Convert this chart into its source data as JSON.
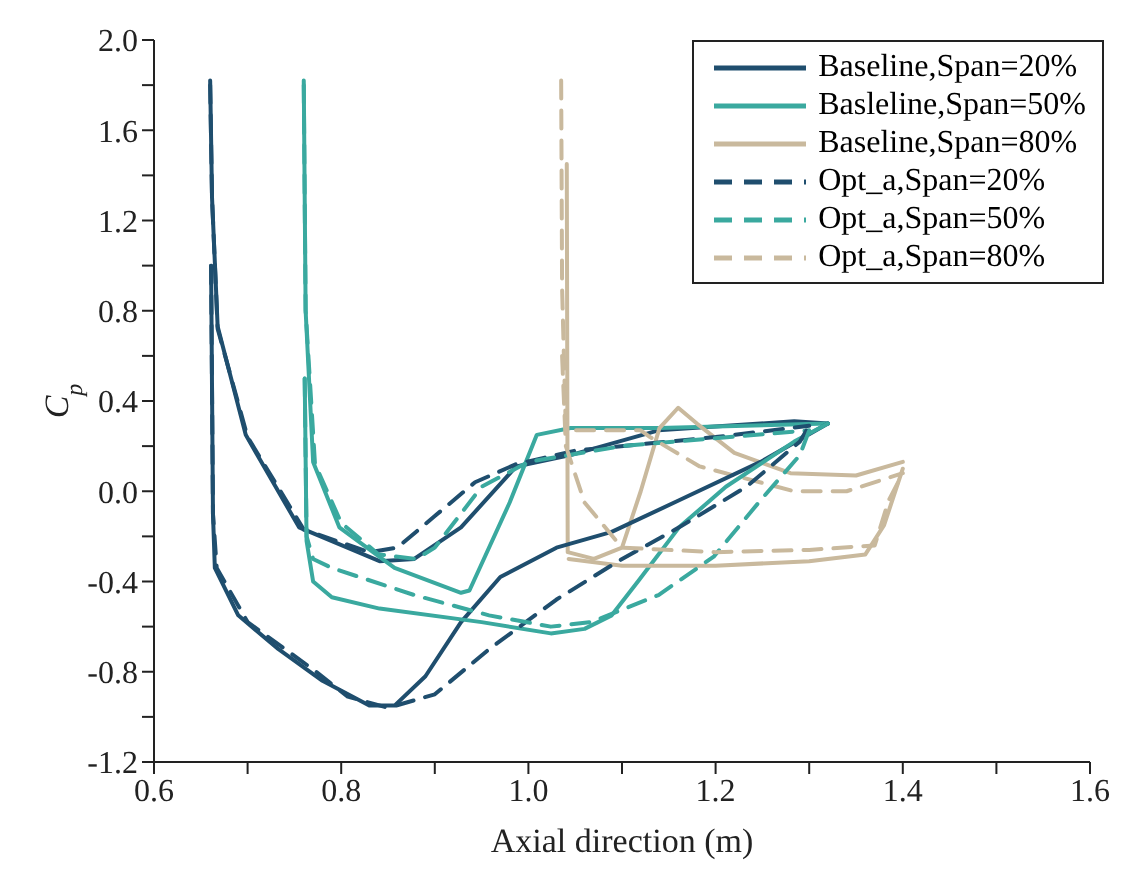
{
  "chart_data": {
    "type": "line",
    "xlabel": "Axial direction (m)",
    "ylabel": "C$_{p}$",
    "legend": "top right",
    "xlim": [
      0.6,
      1.6
    ],
    "ylim": [
      -1.2,
      2.0
    ],
    "xticks": [
      {
        "value": 0.6,
        "label": "0.6"
      },
      {
        "value": 0.7,
        "label": null
      },
      {
        "value": 0.8,
        "label": "0.8"
      },
      {
        "value": 0.9,
        "label": null
      },
      {
        "value": 1.0,
        "label": "1.0"
      },
      {
        "value": 1.1,
        "label": null
      },
      {
        "value": 1.2,
        "label": "1.2"
      },
      {
        "value": 1.3,
        "label": null
      },
      {
        "value": 1.4,
        "label": "1.4"
      },
      {
        "value": 1.5,
        "label": null
      },
      {
        "value": 1.6,
        "label": "1.6"
      }
    ],
    "yticks": [
      {
        "value": -1.2,
        "label": "-1.2"
      },
      {
        "value": -1.0,
        "label": null
      },
      {
        "value": -0.8,
        "label": "-0.8"
      },
      {
        "value": -0.6,
        "label": null
      },
      {
        "value": -0.4,
        "label": "-0.4"
      },
      {
        "value": -0.2,
        "label": null
      },
      {
        "value": 0.0,
        "label": "0.0"
      },
      {
        "value": 0.2,
        "label": null
      },
      {
        "value": 0.4,
        "label": "0.4"
      },
      {
        "value": 0.6,
        "label": null
      },
      {
        "value": 0.8,
        "label": "0.8"
      },
      {
        "value": 1.0,
        "label": null
      },
      {
        "value": 1.2,
        "label": "1.2"
      },
      {
        "value": 1.4,
        "label": null
      },
      {
        "value": 1.6,
        "label": "1.6"
      },
      {
        "value": 1.8,
        "label": null
      },
      {
        "value": 2.0,
        "label": "2.0"
      }
    ],
    "series": [
      {
        "name": "Baseline,Span=20%",
        "color": "#1f4e6e",
        "line_style": "solid",
        "x": [
          0.66,
          0.662,
          0.668,
          0.698,
          0.755,
          0.841,
          0.878,
          0.928,
          0.987,
          1.045,
          1.139,
          1.284,
          1.32
        ],
        "values": [
          1.82,
          1.3,
          0.73,
          0.25,
          -0.16,
          -0.31,
          -0.3,
          -0.16,
          0.11,
          0.16,
          0.27,
          0.31,
          0.3
        ]
      },
      {
        "name": "Basleline,Span=50%",
        "color": "#3aa99f",
        "line_style": "solid",
        "x": [
          0.76,
          0.762,
          0.77,
          0.798,
          0.857,
          0.928,
          0.937,
          0.98,
          1.009,
          1.045,
          1.14,
          1.32
        ],
        "values": [
          1.82,
          0.8,
          0.13,
          -0.16,
          -0.34,
          -0.45,
          -0.44,
          -0.05,
          0.25,
          0.28,
          0.28,
          0.3
        ]
      },
      {
        "name": "Baseline,Span=80%",
        "color": "#c9b99d",
        "line_style": "solid",
        "x": [
          1.041,
          1.042,
          1.07,
          1.1,
          1.12,
          1.14,
          1.16,
          1.18,
          1.22,
          1.28,
          1.35,
          1.4
        ],
        "values": [
          1.45,
          -0.27,
          -0.3,
          -0.25,
          0.0,
          0.28,
          0.37,
          0.3,
          0.17,
          0.08,
          0.07,
          0.13
        ]
      },
      {
        "name": "Opt_a,Span=20%",
        "color": "#1f4e6e",
        "line_style": "dashed",
        "x": [
          0.66,
          0.662,
          0.668,
          0.7,
          0.76,
          0.83,
          0.86,
          0.9,
          0.943,
          0.987,
          1.05,
          1.2,
          1.3
        ],
        "values": [
          1.8,
          1.3,
          0.72,
          0.24,
          -0.17,
          -0.27,
          -0.25,
          -0.11,
          0.04,
          0.12,
          0.18,
          0.24,
          0.29
        ]
      },
      {
        "name": "Opt_a,Span=50%",
        "color": "#3aa99f",
        "line_style": "dashed",
        "x": [
          0.76,
          0.762,
          0.772,
          0.8,
          0.84,
          0.88,
          0.9,
          0.95,
          1.0,
          1.1,
          1.3
        ],
        "values": [
          1.8,
          0.8,
          0.12,
          -0.14,
          -0.28,
          -0.3,
          -0.25,
          0.02,
          0.13,
          0.2,
          0.27
        ]
      },
      {
        "name": "Opt_a,Span=80%",
        "color": "#c9b99d",
        "line_style": "dashed",
        "x": [
          1.035,
          1.036,
          1.04,
          1.06,
          1.12,
          1.13,
          1.183,
          1.284,
          1.34,
          1.4
        ],
        "values": [
          1.82,
          0.9,
          0.27,
          0.27,
          0.27,
          0.24,
          0.11,
          0.0,
          0.0,
          0.08
        ]
      },
      {
        "color": "#1f4e6e",
        "line_style": "solid",
        "x": [
          0.661,
          0.663,
          0.665,
          0.69,
          0.733,
          0.78,
          0.83,
          0.857,
          0.89,
          0.928,
          0.97,
          1.03,
          1.089,
          1.161,
          1.248,
          1.32
        ],
        "values": [
          1.0,
          -0.1,
          -0.34,
          -0.55,
          -0.7,
          -0.84,
          -0.95,
          -0.95,
          -0.82,
          -0.58,
          -0.38,
          -0.25,
          -0.18,
          -0.04,
          0.13,
          0.3
        ]
      },
      {
        "color": "#3aa99f",
        "line_style": "solid",
        "x": [
          0.761,
          0.763,
          0.77,
          0.79,
          0.841,
          0.95,
          1.024,
          1.06,
          1.089,
          1.117,
          1.161,
          1.211,
          1.284,
          1.32
        ],
        "values": [
          0.5,
          -0.22,
          -0.4,
          -0.47,
          -0.52,
          -0.58,
          -0.63,
          -0.61,
          -0.55,
          -0.4,
          -0.16,
          0.02,
          0.22,
          0.3
        ]
      },
      {
        "color": "#c9b99d",
        "line_style": "solid",
        "x": [
          1.043,
          1.1,
          1.2,
          1.3,
          1.36,
          1.38,
          1.4
        ],
        "values": [
          -0.3,
          -0.33,
          -0.33,
          -0.31,
          -0.28,
          -0.15,
          0.1
        ]
      },
      {
        "color": "#1f4e6e",
        "line_style": "dashed",
        "x": [
          0.661,
          0.663,
          0.667,
          0.7,
          0.77,
          0.807,
          0.85,
          0.9,
          0.958,
          1.03,
          1.096,
          1.161,
          1.233,
          1.29,
          1.3
        ],
        "values": [
          1.0,
          -0.1,
          -0.34,
          -0.58,
          -0.79,
          -0.91,
          -0.96,
          -0.9,
          -0.7,
          -0.48,
          -0.31,
          -0.16,
          0.02,
          0.22,
          0.29
        ]
      },
      {
        "color": "#3aa99f",
        "line_style": "dashed",
        "x": [
          0.761,
          0.763,
          0.77,
          0.79,
          0.878,
          0.958,
          1.024,
          1.067,
          1.139,
          1.198,
          1.248,
          1.29,
          1.3
        ],
        "values": [
          0.5,
          -0.2,
          -0.3,
          -0.34,
          -0.46,
          -0.55,
          -0.6,
          -0.58,
          -0.46,
          -0.29,
          -0.04,
          0.16,
          0.27
        ]
      },
      {
        "color": "#c9b99d",
        "line_style": "dashed",
        "x": [
          1.036,
          1.04,
          1.06,
          1.1,
          1.2,
          1.3,
          1.37,
          1.385,
          1.4
        ],
        "values": [
          0.6,
          0.2,
          -0.05,
          -0.25,
          -0.27,
          -0.26,
          -0.24,
          -0.04,
          0.08
        ]
      }
    ]
  }
}
